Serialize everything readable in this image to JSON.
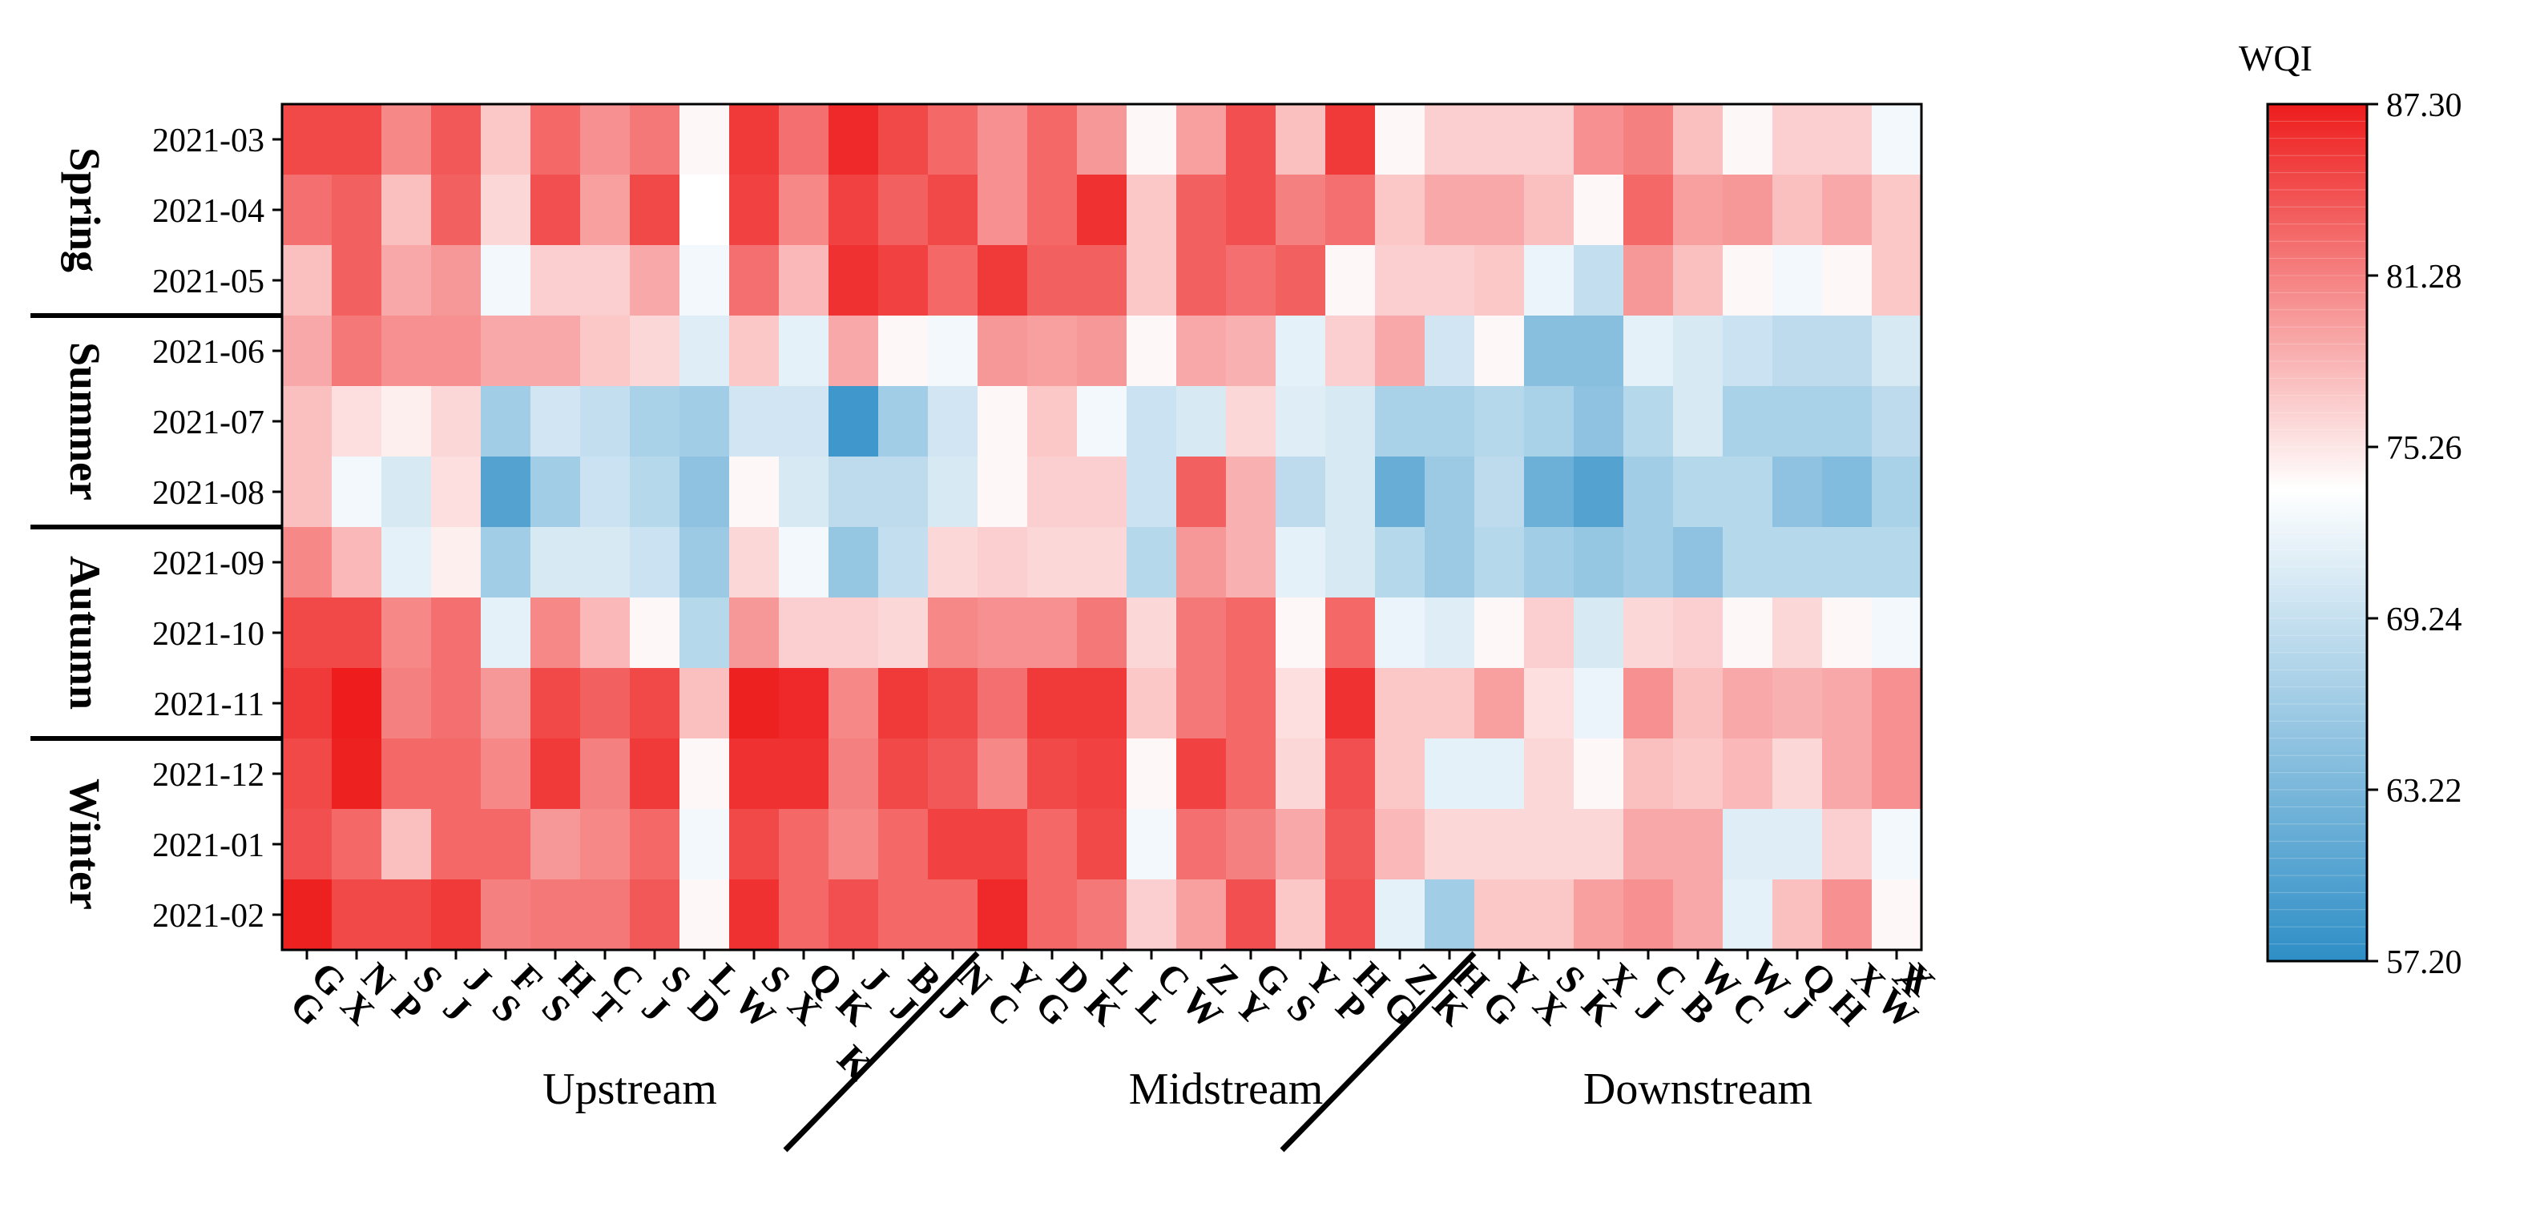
{
  "chart_data": {
    "type": "heatmap",
    "title": "",
    "colorbar": {
      "label": "WQI",
      "min": 57.2,
      "max": 87.3,
      "ticks": [
        "87.30",
        "81.28",
        "75.26",
        "69.24",
        "63.22",
        "57.20"
      ],
      "tick_values": [
        87.3,
        81.28,
        75.26,
        69.24,
        63.22,
        57.2
      ],
      "low_color": "#2E8EC6",
      "mid_color": "#FFFFFF",
      "high_color": "#EE1C1C",
      "mid_value": 73.0
    },
    "rows": [
      "2021-03",
      "2021-04",
      "2021-05",
      "2021-06",
      "2021-07",
      "2021-08",
      "2021-09",
      "2021-10",
      "2021-11",
      "2021-12",
      "2021-01",
      "2021-02"
    ],
    "seasons": [
      {
        "label": "Spring",
        "rows": 3
      },
      {
        "label": "Summer",
        "rows": 3
      },
      {
        "label": "Autumn",
        "rows": 3
      },
      {
        "label": "Winter",
        "rows": 3
      }
    ],
    "columns": [
      "GG",
      "NX",
      "SP",
      "JJ",
      "FS",
      "HS",
      "CT",
      "SJ",
      "LD",
      "SW",
      "QX",
      "JK",
      "BJ",
      "NJ",
      "YC",
      "DG",
      "LK",
      "CL",
      "ZW",
      "GY",
      "YS",
      "HP",
      "ZG",
      "HK",
      "YG",
      "SX",
      "XK",
      "CJ",
      "WB",
      "WC",
      "QJ",
      "XH",
      "XW"
    ],
    "column_labels": [
      [
        "G",
        "G"
      ],
      [
        "N",
        "X"
      ],
      [
        "S",
        "P"
      ],
      [
        "J",
        "J"
      ],
      [
        "F",
        "S"
      ],
      [
        "H",
        "S"
      ],
      [
        "C",
        "T"
      ],
      [
        "S",
        "J"
      ],
      [
        "L",
        "D"
      ],
      [
        "S",
        "W"
      ],
      [
        "Q",
        "X"
      ],
      [
        "J",
        "K"
      ],
      [
        "B",
        "J"
      ],
      [
        "N",
        "J"
      ],
      [
        "Y",
        "C"
      ],
      [
        "D",
        "G"
      ],
      [
        "L",
        "K"
      ],
      [
        "C",
        "L"
      ],
      [
        "Z",
        "W"
      ],
      [
        "G",
        "Y"
      ],
      [
        "Y",
        "S"
      ],
      [
        "H",
        "P"
      ],
      [
        "Z",
        "G"
      ],
      [
        "H",
        "K"
      ],
      [
        "Y",
        "G"
      ],
      [
        "S",
        "X"
      ],
      [
        "X",
        "K"
      ],
      [
        "C",
        "J"
      ],
      [
        "W",
        "B"
      ],
      [
        "W",
        "C"
      ],
      [
        "Q",
        "J"
      ],
      [
        "X",
        "H"
      ],
      [
        "X",
        "W"
      ]
    ],
    "column_label_texts": [
      "GG",
      "NX",
      "SP",
      "JJ",
      "FS",
      "HS",
      "CT",
      "SJ",
      "LD",
      "SW",
      "QX",
      "JK",
      "BJ",
      "NJ",
      "YC",
      "DG",
      "LK",
      "CL",
      "ZW",
      "GY",
      "YS",
      "HP",
      "ZG",
      "HK",
      "YG",
      "SX",
      "XK",
      "CJ",
      "WB",
      "WC",
      "QJ",
      "XH",
      "XW"
    ],
    "extra_column_letters": [
      "K",
      "X"
    ],
    "groups": [
      {
        "label": "Upstream",
        "columns": 14
      },
      {
        "label": "Midstream",
        "columns": 10
      },
      {
        "label": "Downstream",
        "columns": 9
      }
    ],
    "values": [
      [
        84.5,
        84.5,
        80.5,
        83.5,
        76.5,
        82.5,
        80.0,
        81.5,
        73.5,
        85.5,
        82.0,
        86.5,
        84.5,
        82.5,
        80.0,
        82.5,
        79.5,
        73.5,
        79.0,
        84.0,
        77.0,
        85.5,
        73.5,
        76.0,
        76.0,
        76.0,
        80.0,
        81.0,
        77.0,
        73.5,
        76.0,
        76.0,
        72.0
      ],
      [
        82.0,
        83.0,
        77.0,
        83.0,
        75.5,
        84.0,
        79.0,
        84.5,
        73.0,
        85.0,
        80.5,
        85.0,
        83.0,
        84.5,
        80.0,
        82.5,
        86.0,
        76.5,
        83.0,
        84.0,
        81.0,
        82.0,
        76.5,
        78.5,
        78.5,
        77.0,
        73.5,
        82.5,
        79.0,
        79.5,
        77.0,
        78.5,
        76.5
      ],
      [
        77.0,
        83.0,
        78.5,
        79.5,
        72.0,
        76.0,
        76.0,
        78.5,
        72.0,
        82.0,
        77.5,
        86.0,
        85.0,
        82.5,
        85.5,
        83.0,
        83.0,
        76.5,
        83.0,
        82.0,
        83.0,
        73.5,
        76.0,
        76.0,
        76.5,
        71.5,
        68.5,
        79.5,
        77.0,
        73.5,
        72.0,
        73.5,
        76.5
      ],
      [
        78.5,
        81.5,
        80.0,
        80.0,
        78.5,
        78.5,
        76.5,
        75.5,
        70.5,
        76.5,
        71.0,
        78.5,
        73.5,
        72.0,
        79.5,
        79.0,
        79.5,
        73.5,
        78.5,
        78.0,
        71.0,
        76.0,
        78.5,
        69.5,
        73.5,
        64.0,
        64.0,
        71.0,
        70.0,
        69.0,
        68.0,
        68.0,
        70.0
      ],
      [
        77.0,
        75.0,
        74.0,
        75.5,
        66.0,
        69.5,
        68.5,
        66.5,
        66.0,
        69.5,
        69.5,
        58.5,
        66.0,
        69.5,
        73.5,
        76.5,
        72.0,
        69.0,
        70.0,
        75.5,
        70.5,
        70.0,
        66.5,
        66.5,
        67.5,
        66.5,
        64.5,
        67.5,
        70.0,
        66.5,
        66.5,
        66.5,
        68.0
      ],
      [
        77.0,
        72.0,
        70.0,
        75.0,
        60.0,
        66.0,
        69.0,
        67.5,
        64.5,
        73.5,
        70.0,
        68.0,
        68.0,
        70.0,
        73.5,
        76.0,
        76.0,
        69.0,
        83.0,
        78.0,
        68.0,
        70.0,
        61.5,
        65.5,
        68.0,
        62.0,
        60.0,
        66.0,
        67.5,
        67.5,
        64.5,
        63.5,
        66.5
      ],
      [
        80.5,
        77.5,
        71.0,
        74.0,
        66.0,
        70.0,
        70.0,
        69.0,
        65.5,
        75.5,
        72.0,
        65.0,
        68.5,
        75.5,
        76.0,
        75.5,
        75.5,
        67.5,
        79.5,
        78.0,
        71.0,
        70.0,
        67.5,
        65.5,
        67.5,
        66.0,
        65.0,
        66.0,
        64.5,
        67.5,
        67.5,
        67.5,
        67.5
      ],
      [
        84.5,
        84.5,
        80.5,
        82.0,
        71.0,
        80.5,
        77.5,
        73.5,
        67.5,
        79.5,
        76.0,
        76.0,
        75.5,
        80.5,
        80.0,
        80.0,
        81.5,
        75.5,
        81.5,
        82.5,
        73.5,
        82.5,
        71.5,
        70.5,
        73.5,
        76.0,
        70.0,
        75.5,
        76.0,
        73.5,
        75.5,
        73.5,
        72.0
      ],
      [
        85.5,
        87.3,
        81.0,
        82.0,
        79.5,
        84.5,
        83.0,
        84.5,
        77.0,
        87.0,
        86.5,
        80.5,
        85.5,
        84.5,
        82.0,
        85.5,
        85.5,
        76.5,
        81.5,
        82.5,
        75.0,
        86.0,
        76.5,
        76.5,
        79.0,
        75.0,
        71.5,
        80.0,
        77.0,
        78.5,
        78.0,
        78.5,
        80.0
      ],
      [
        84.5,
        87.0,
        82.5,
        82.5,
        80.5,
        85.5,
        81.0,
        85.5,
        73.5,
        86.0,
        86.0,
        81.0,
        84.5,
        83.5,
        80.5,
        84.5,
        85.0,
        73.5,
        85.0,
        82.5,
        75.5,
        84.0,
        76.5,
        71.0,
        71.0,
        75.5,
        73.5,
        77.0,
        76.5,
        77.5,
        75.5,
        78.5,
        80.0
      ],
      [
        84.0,
        82.5,
        77.0,
        82.5,
        82.5,
        79.5,
        80.5,
        82.5,
        72.0,
        84.5,
        82.5,
        80.5,
        82.5,
        85.0,
        85.0,
        82.5,
        84.5,
        72.0,
        82.0,
        81.0,
        78.5,
        83.5,
        77.5,
        75.5,
        75.5,
        75.5,
        75.5,
        78.5,
        78.5,
        70.5,
        70.5,
        76.0,
        72.0
      ],
      [
        87.0,
        84.5,
        84.5,
        85.5,
        81.0,
        81.5,
        81.5,
        83.5,
        73.5,
        86.0,
        82.5,
        84.0,
        82.5,
        82.5,
        86.5,
        82.5,
        81.5,
        76.0,
        79.0,
        84.0,
        76.5,
        84.0,
        71.0,
        66.0,
        76.5,
        76.5,
        79.0,
        80.0,
        78.5,
        71.0,
        77.0,
        80.0,
        73.5
      ]
    ]
  }
}
